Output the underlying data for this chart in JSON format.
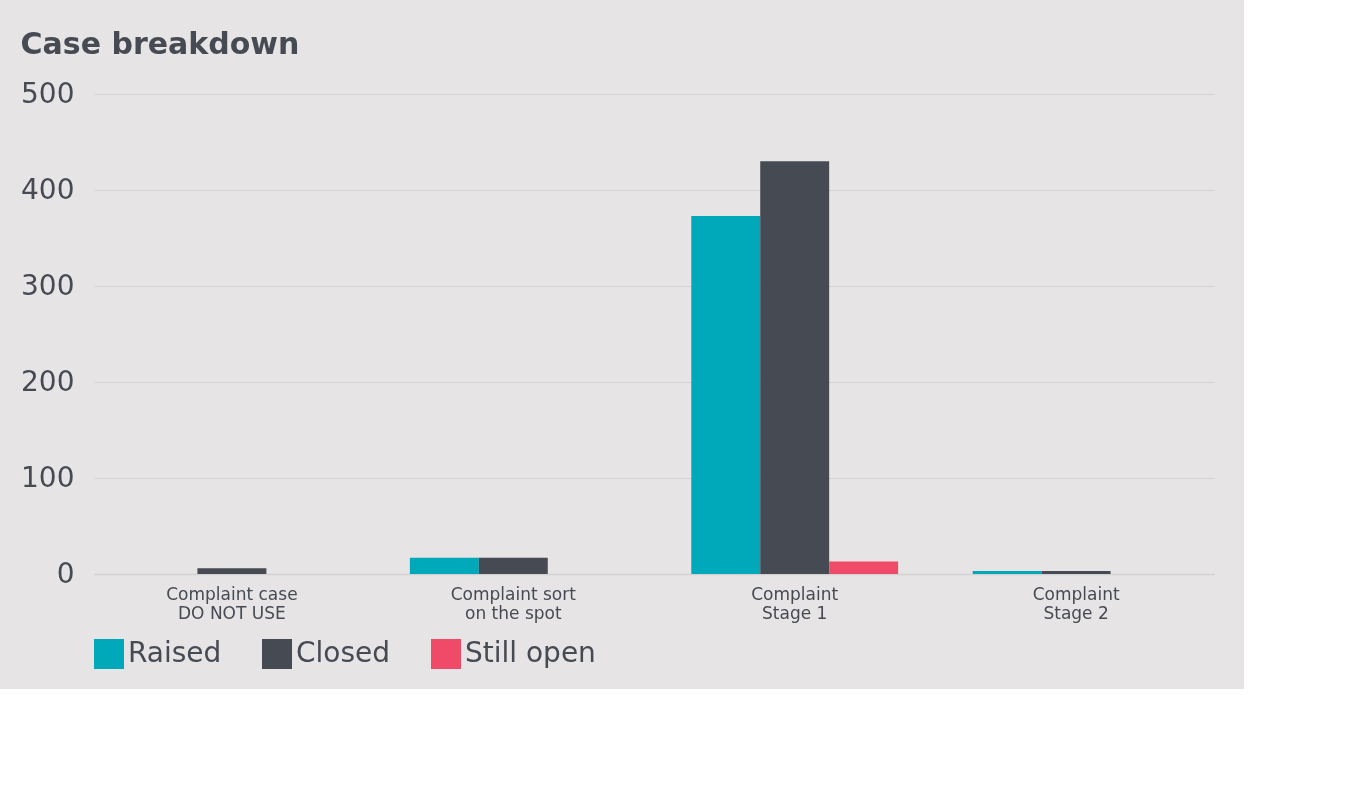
{
  "chart_data": {
    "type": "bar",
    "title": "Case breakdown",
    "categories": [
      "Complaint case\nDO NOT USE",
      "Complaint sort\non the spot",
      "Complaint\nStage 1",
      "Complaint\nStage 2"
    ],
    "series": [
      {
        "name": "Raised",
        "color": "#00a9b9",
        "values": [
          null,
          17,
          373,
          3
        ]
      },
      {
        "name": "Closed",
        "color": "#464a53",
        "values": [
          6,
          17,
          430,
          3
        ]
      },
      {
        "name": "Still open",
        "color": "#f04a69",
        "values": [
          null,
          null,
          13,
          null
        ]
      }
    ],
    "ylim": [
      0,
      500
    ],
    "yticks": [
      0,
      100,
      200,
      300,
      400,
      500
    ],
    "grid": "y",
    "legend": "bottom"
  }
}
